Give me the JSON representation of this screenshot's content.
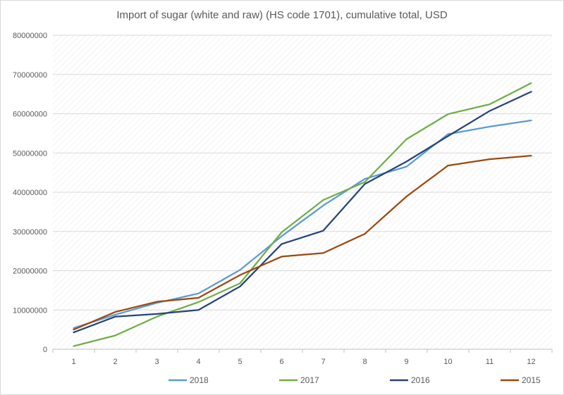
{
  "chart_data": {
    "type": "line",
    "title": "Import of sugar (white and raw) (HS code 1701), cumulative total, USD",
    "xlabel": "",
    "ylabel": "",
    "x": [
      "1",
      "2",
      "3",
      "4",
      "5",
      "6",
      "7",
      "8",
      "9",
      "10",
      "11",
      "12"
    ],
    "y_ticks": [
      "0",
      "10000000",
      "20000000",
      "30000000",
      "40000000",
      "50000000",
      "60000000",
      "70000000",
      "80000000"
    ],
    "ylim": [
      0,
      80000000
    ],
    "grid": "diagonal-hatched plot area",
    "legend_position": "bottom",
    "series": [
      {
        "name": "2018",
        "color": "#5b9bd5",
        "values": [
          5400000,
          8800000,
          11800000,
          14200000,
          20200000,
          28800000,
          36600000,
          43400000,
          46500000,
          54800000,
          56700000,
          58300000
        ]
      },
      {
        "name": "2017",
        "color": "#70ad47",
        "values": [
          800000,
          3500000,
          8300000,
          12000000,
          16800000,
          29800000,
          38000000,
          42600000,
          53500000,
          59900000,
          62400000,
          67800000
        ]
      },
      {
        "name": "2016",
        "color": "#264478",
        "values": [
          4300000,
          8300000,
          9000000,
          10000000,
          16000000,
          26800000,
          30200000,
          42100000,
          47800000,
          54300000,
          60700000,
          65600000
        ]
      },
      {
        "name": "2015",
        "color": "#9e480e",
        "values": [
          5000000,
          9500000,
          12100000,
          13100000,
          18900000,
          23600000,
          24500000,
          29400000,
          38900000,
          46800000,
          48400000,
          49300000
        ]
      }
    ]
  }
}
